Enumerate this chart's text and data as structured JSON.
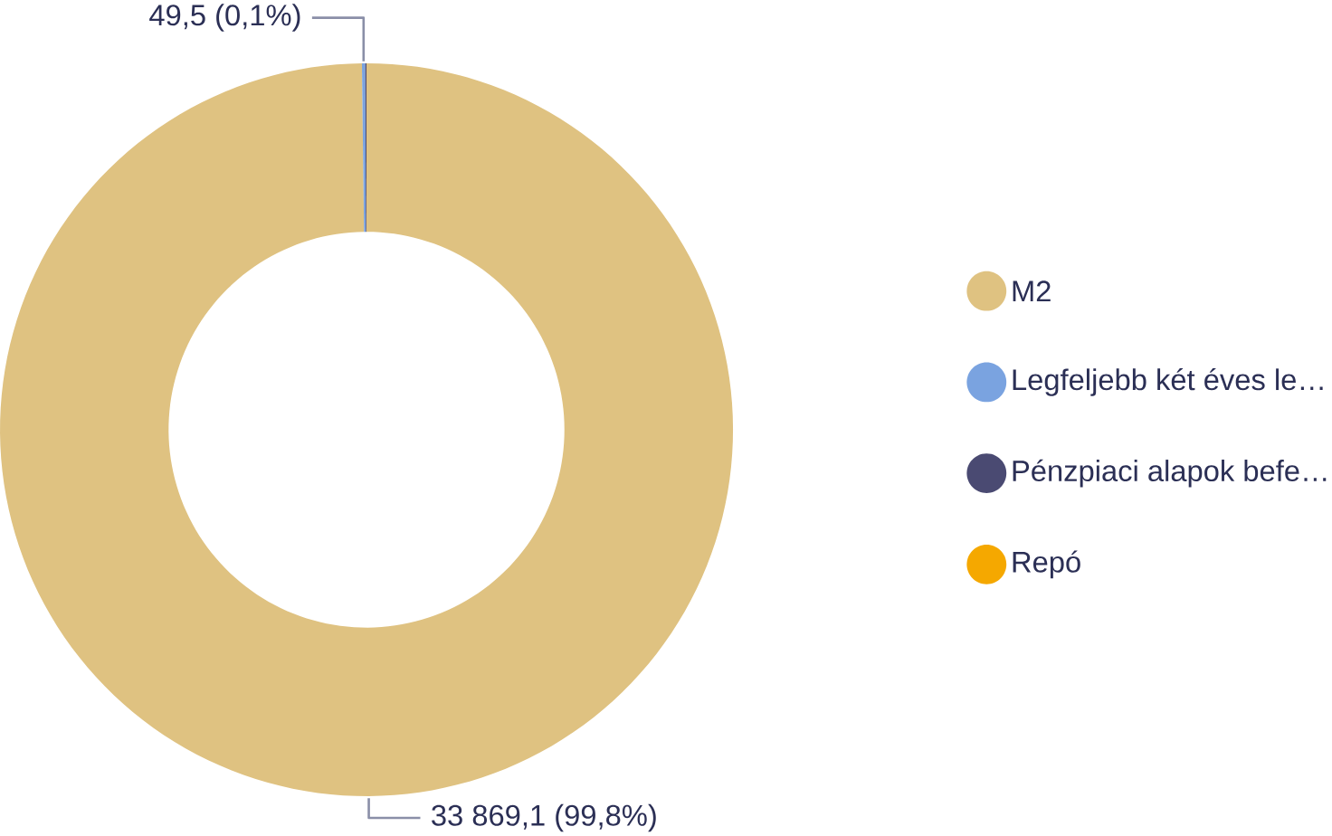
{
  "chart_data": {
    "type": "donut",
    "categories": [
      "M2",
      "Legfeljebb két éves le…",
      "Pénzpiaci alapok befe…",
      "Repó"
    ],
    "values": [
      33869.1,
      49.5,
      18,
      0
    ],
    "colors": [
      "#dfc281",
      "#7aa3e0",
      "#4a4a72",
      "#f5a800"
    ],
    "value_labels": [
      "33 869,1 (99,8%)",
      "49,5 (0,1%)",
      null,
      null
    ],
    "legend": "right"
  }
}
